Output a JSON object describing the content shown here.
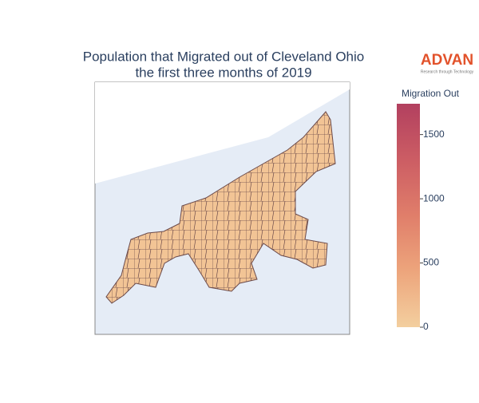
{
  "chart_data": {
    "type": "choropleth",
    "title_lines": [
      "Population that Migrated out of Cleveland Ohio",
      "the first three months of 2019"
    ],
    "colorbar": {
      "title": "Migration Out",
      "clim": [
        0,
        1740
      ],
      "ticks": [
        0,
        500,
        1000,
        1500
      ],
      "colorscale": [
        "#f3cf9f",
        "#eda57c",
        "#e07e6a",
        "#cc5d64",
        "#b2405f"
      ]
    },
    "logo": {
      "name": "ADVAN",
      "tagline": "Research through Technology"
    }
  }
}
